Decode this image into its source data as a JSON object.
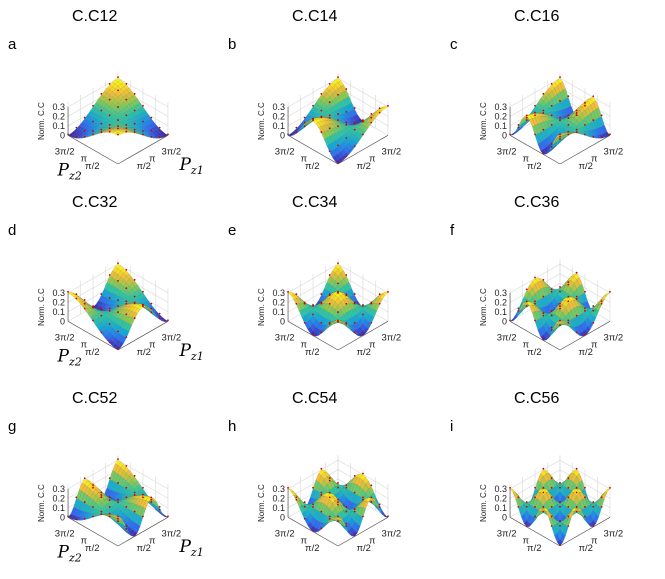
{
  "chart_data": [
    {
      "panel": "a",
      "title": "C.C12",
      "type": "surface",
      "zlabel": "Norm. C.C",
      "zticks": [
        "0",
        "0.1",
        "0.2",
        "0.3"
      ],
      "xticks": [
        "π/2",
        "π",
        "3π/2"
      ],
      "yticks": [
        "π/2",
        "π",
        "3π/2"
      ],
      "xlabel": "P",
      "xlabel_sub": "z1",
      "ylabel": "P",
      "ylabel_sub": "z2",
      "mx": 1,
      "my": 1,
      "sgn": 1,
      "zlim": [
        0,
        0.3
      ]
    },
    {
      "panel": "b",
      "title": "C.C14",
      "type": "surface",
      "zlabel": "Norm. C.C",
      "zticks": [
        "0",
        "0.1",
        "0.2",
        "0.3"
      ],
      "xticks": [
        "π/2",
        "π",
        "3π/2"
      ],
      "yticks": [
        "π/2",
        "π",
        "3π/2"
      ],
      "xlabel": "",
      "xlabel_sub": "",
      "ylabel": "",
      "ylabel_sub": "",
      "mx": 1,
      "my": 2,
      "sgn": -1,
      "zlim": [
        0,
        0.3
      ]
    },
    {
      "panel": "c",
      "title": "C.C16",
      "type": "surface",
      "zlabel": "Norm. C.C",
      "zticks": [
        "0",
        "0.1",
        "0.2",
        "0.3"
      ],
      "xticks": [
        "π/2",
        "π",
        "3π/2"
      ],
      "yticks": [
        "π/2",
        "π",
        "3π/2"
      ],
      "xlabel": "",
      "xlabel_sub": "",
      "ylabel": "",
      "ylabel_sub": "",
      "mx": 1,
      "my": 3,
      "sgn": 1,
      "zlim": [
        0,
        0.3
      ]
    },
    {
      "panel": "d",
      "title": "C.C32",
      "type": "surface",
      "zlabel": "Norm. C.C",
      "zticks": [
        "0",
        "0.1",
        "0.2",
        "0.3"
      ],
      "xticks": [
        "π/2",
        "π",
        "3π/2"
      ],
      "yticks": [
        "π/2",
        "π",
        "3π/2"
      ],
      "xlabel": "P",
      "xlabel_sub": "z1",
      "ylabel": "P",
      "ylabel_sub": "z2",
      "mx": 2,
      "my": 1,
      "sgn": -1,
      "zlim": [
        0,
        0.3
      ]
    },
    {
      "panel": "e",
      "title": "C.C34",
      "type": "surface",
      "zlabel": "Norm. C.C",
      "zticks": [
        "0",
        "0.1",
        "0.2",
        "0.3"
      ],
      "xticks": [
        "π/2",
        "π",
        "3π/2"
      ],
      "yticks": [
        "π/2",
        "π",
        "3π/2"
      ],
      "xlabel": "",
      "xlabel_sub": "",
      "ylabel": "",
      "ylabel_sub": "",
      "mx": 2,
      "my": 2,
      "sgn": 1,
      "zlim": [
        0,
        0.3
      ]
    },
    {
      "panel": "f",
      "title": "C.C36",
      "type": "surface",
      "zlabel": "Norm. C.C",
      "zticks": [
        "0",
        "0.1",
        "0.2",
        "0.3"
      ],
      "xticks": [
        "π/2",
        "π",
        "3π/2"
      ],
      "yticks": [
        "π/2",
        "π",
        "3π/2"
      ],
      "xlabel": "",
      "xlabel_sub": "",
      "ylabel": "",
      "ylabel_sub": "",
      "mx": 2,
      "my": 3,
      "sgn": 1,
      "zlim": [
        0,
        0.3
      ]
    },
    {
      "panel": "g",
      "title": "C.C52",
      "type": "surface",
      "zlabel": "Norm. C.C",
      "zticks": [
        "0",
        "0.1",
        "0.2",
        "0.3"
      ],
      "xticks": [
        "π/2",
        "π",
        "3π/2"
      ],
      "yticks": [
        "π/2",
        "π",
        "3π/2"
      ],
      "xlabel": "P",
      "xlabel_sub": "z1",
      "ylabel": "P",
      "ylabel_sub": "z2",
      "mx": 3,
      "my": 1,
      "sgn": 1,
      "zlim": [
        0,
        0.3
      ]
    },
    {
      "panel": "h",
      "title": "C.C54",
      "type": "surface",
      "zlabel": "Norm. C.C",
      "zticks": [
        "0",
        "0.1",
        "0.2",
        "0.3"
      ],
      "xticks": [
        "π/2",
        "π",
        "3π/2"
      ],
      "yticks": [
        "π/2",
        "π",
        "3π/2"
      ],
      "xlabel": "",
      "xlabel_sub": "",
      "ylabel": "",
      "ylabel_sub": "",
      "mx": 3,
      "my": 2,
      "sgn": 1,
      "zlim": [
        0,
        0.3
      ]
    },
    {
      "panel": "i",
      "title": "C.C56",
      "type": "surface",
      "zlabel": "Norm. C.C",
      "zticks": [
        "0",
        "0.1",
        "0.2",
        "0.3"
      ],
      "xticks": [
        "π/2",
        "π",
        "3π/2"
      ],
      "yticks": [
        "π/2",
        "π",
        "3π/2"
      ],
      "xlabel": "",
      "xlabel_sub": "",
      "ylabel": "",
      "ylabel_sub": "",
      "mx": 3,
      "my": 3,
      "sgn": -1,
      "zlim": [
        0,
        0.3
      ]
    }
  ],
  "colors": {
    "colormap": [
      "#3e26a8",
      "#2f6bf0",
      "#14a5d9",
      "#2ec4a4",
      "#91c94d",
      "#f2bd37",
      "#f9fb15"
    ],
    "markers": "#cc0000",
    "grid": "#d8d8d8"
  }
}
